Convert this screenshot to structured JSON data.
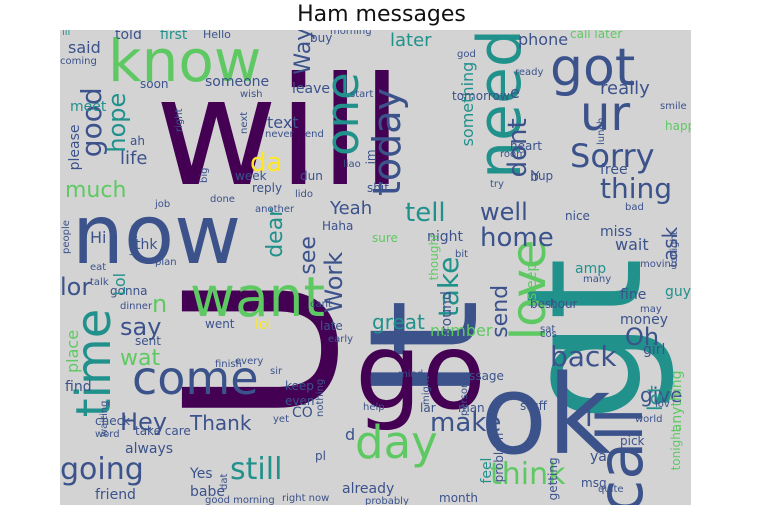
{
  "title": "Ham messages",
  "background_color": "#d3d3d3",
  "palette": [
    "#440154",
    "#3b528b",
    "#21918c",
    "#5ec962",
    "#fde725"
  ],
  "words": [
    {
      "text": "will",
      "color": "#440154"
    },
    {
      "text": "U",
      "color": "#440154"
    },
    {
      "text": "gt",
      "color": "#21918c"
    },
    {
      "text": "lt",
      "color": "#3b528b"
    },
    {
      "text": "ok",
      "color": "#3b528b"
    },
    {
      "text": "go",
      "color": "#440154"
    },
    {
      "text": "now",
      "color": "#3b528b"
    },
    {
      "text": "know",
      "color": "#5ec962"
    },
    {
      "text": "got",
      "color": "#3b528b"
    },
    {
      "text": "want",
      "color": "#5ec962"
    },
    {
      "text": "come",
      "color": "#3b528b"
    },
    {
      "text": "call",
      "color": "#3b528b"
    },
    {
      "text": "need",
      "color": "#21918c"
    },
    {
      "text": "love",
      "color": "#5ec962"
    },
    {
      "text": "time",
      "color": "#21918c"
    },
    {
      "text": "day",
      "color": "#5ec962"
    },
    {
      "text": "one",
      "color": "#21918c"
    },
    {
      "text": "ur",
      "color": "#3b528b"
    },
    {
      "text": "today",
      "color": "#3b528b"
    },
    {
      "text": "Sorry",
      "color": "#3b528b"
    },
    {
      "text": "still",
      "color": "#21918c"
    },
    {
      "text": "think",
      "color": "#5ec962"
    },
    {
      "text": "going",
      "color": "#3b528b"
    },
    {
      "text": "back",
      "color": "#3b528b"
    },
    {
      "text": "take",
      "color": "#21918c"
    },
    {
      "text": "home",
      "color": "#3b528b"
    },
    {
      "text": "tell",
      "color": "#21918c"
    },
    {
      "text": "good",
      "color": "#3b528b"
    },
    {
      "text": "da",
      "color": "#fde725"
    },
    {
      "text": "thing",
      "color": "#3b528b"
    },
    {
      "text": "make",
      "color": "#3b528b"
    },
    {
      "text": "dont",
      "color": "#3b528b"
    },
    {
      "text": "Hey",
      "color": "#3b528b"
    },
    {
      "text": "say",
      "color": "#3b528b"
    },
    {
      "text": "Oh",
      "color": "#3b528b"
    },
    {
      "text": "well",
      "color": "#3b528b"
    },
    {
      "text": "hope",
      "color": "#21918c"
    },
    {
      "text": "much",
      "color": "#5ec962"
    },
    {
      "text": "lor",
      "color": "#3b528b"
    },
    {
      "text": "n",
      "color": "#5ec962"
    },
    {
      "text": "Work",
      "color": "#3b528b"
    },
    {
      "text": "see",
      "color": "#3b528b"
    },
    {
      "text": "send",
      "color": "#3b528b"
    },
    {
      "text": "dear",
      "color": "#21918c"
    },
    {
      "text": "Way",
      "color": "#3b528b"
    },
    {
      "text": "wat",
      "color": "#5ec962"
    },
    {
      "text": "Thank",
      "color": "#3b528b"
    },
    {
      "text": "give",
      "color": "#3b528b"
    },
    {
      "text": "let",
      "color": "#21918c"
    },
    {
      "text": "ask",
      "color": "#3b528b"
    },
    {
      "text": "life",
      "color": "#3b528b"
    },
    {
      "text": "great",
      "color": "#21918c"
    },
    {
      "text": "Yeah",
      "color": "#3b528b"
    },
    {
      "text": "already",
      "color": "#3b528b"
    },
    {
      "text": "friend",
      "color": "#3b528b"
    },
    {
      "text": "always",
      "color": "#3b528b"
    },
    {
      "text": "babe",
      "color": "#3b528b"
    },
    {
      "text": "Yes",
      "color": "#3b528b"
    },
    {
      "text": "later",
      "color": "#21918c"
    },
    {
      "text": "phone",
      "color": "#3b528b"
    },
    {
      "text": "said",
      "color": "#3b528b"
    },
    {
      "text": "told",
      "color": "#3b528b"
    },
    {
      "text": "first",
      "color": "#21918c"
    },
    {
      "text": "Hello",
      "color": "#3b528b"
    },
    {
      "text": "buy",
      "color": "#3b528b"
    },
    {
      "text": "morning",
      "color": "#3b528b"
    },
    {
      "text": "call later",
      "color": "#5ec962"
    },
    {
      "text": "ill",
      "color": "#21918c"
    },
    {
      "text": "coming",
      "color": "#3b528b"
    },
    {
      "text": "meet",
      "color": "#21918c"
    },
    {
      "text": "someone",
      "color": "#3b528b"
    },
    {
      "text": "leave",
      "color": "#3b528b"
    },
    {
      "text": "something",
      "color": "#21918c"
    },
    {
      "text": "tomorrow",
      "color": "#3b528b"
    },
    {
      "text": "really",
      "color": "#3b528b"
    },
    {
      "text": "text",
      "color": "#3b528b"
    },
    {
      "text": "please",
      "color": "#3b528b"
    },
    {
      "text": "night",
      "color": "#3b528b"
    },
    {
      "text": "wait",
      "color": "#3b528b"
    },
    {
      "text": "Hi",
      "color": "#3b528b"
    },
    {
      "text": "thk",
      "color": "#3b528b"
    },
    {
      "text": "gonna",
      "color": "#3b528b"
    },
    {
      "text": "Lol",
      "color": "#21918c"
    },
    {
      "text": "guy",
      "color": "#21918c"
    },
    {
      "text": "fine",
      "color": "#3b528b"
    },
    {
      "text": "money",
      "color": "#3b528b"
    },
    {
      "text": "amp",
      "color": "#21918c"
    },
    {
      "text": "free",
      "color": "#3b528b"
    },
    {
      "text": "miss",
      "color": "#3b528b"
    },
    {
      "text": "nice",
      "color": "#3b528b"
    },
    {
      "text": "sure",
      "color": "#5ec962"
    },
    {
      "text": "number",
      "color": "#5ec962"
    },
    {
      "text": "late",
      "color": "#3b528b"
    },
    {
      "text": "went",
      "color": "#3b528b"
    },
    {
      "text": "lol",
      "color": "#fde725"
    },
    {
      "text": "sent",
      "color": "#3b528b"
    },
    {
      "text": "find",
      "color": "#3b528b"
    },
    {
      "text": "check",
      "color": "#3b528b"
    },
    {
      "text": "keep",
      "color": "#3b528b"
    },
    {
      "text": "even",
      "color": "#3b528b"
    },
    {
      "text": "CO",
      "color": "#3b528b"
    },
    {
      "text": "take care",
      "color": "#3b528b"
    },
    {
      "text": "d",
      "color": "#3b528b"
    },
    {
      "text": "lar",
      "color": "#3b528b"
    },
    {
      "text": "man",
      "color": "#3b528b"
    },
    {
      "text": "stuff",
      "color": "#3b528b"
    },
    {
      "text": "message",
      "color": "#3b528b"
    },
    {
      "text": "feel",
      "color": "#21918c"
    },
    {
      "text": "month",
      "color": "#3b528b"
    },
    {
      "text": "anything",
      "color": "#5ec962"
    },
    {
      "text": "tonight",
      "color": "#5ec962"
    },
    {
      "text": "ya",
      "color": "#3b528b"
    },
    {
      "text": "msg",
      "color": "#3b528b"
    },
    {
      "text": "quite",
      "color": "#3b528b"
    },
    {
      "text": "girl",
      "color": "#3b528b"
    },
    {
      "text": "may",
      "color": "#3b528b"
    },
    {
      "text": "best",
      "color": "#3b528b"
    },
    {
      "text": "hour",
      "color": "#3b528b"
    },
    {
      "text": "sleep",
      "color": "#5ec962"
    },
    {
      "text": "around",
      "color": "#3b528b"
    },
    {
      "text": "thought",
      "color": "#5ec962"
    },
    {
      "text": "week",
      "color": "#3b528b"
    },
    {
      "text": "reply",
      "color": "#3b528b"
    },
    {
      "text": "job",
      "color": "#3b528b"
    },
    {
      "text": "another",
      "color": "#3b528b"
    },
    {
      "text": "done",
      "color": "#3b528b"
    },
    {
      "text": "never",
      "color": "#3b528b"
    },
    {
      "text": "end",
      "color": "#3b528b"
    },
    {
      "text": "Haha",
      "color": "#3b528b"
    },
    {
      "text": "lunch",
      "color": "#3b528b"
    },
    {
      "text": "heart",
      "color": "#3b528b"
    },
    {
      "text": "room",
      "color": "#3b528b"
    },
    {
      "text": "try",
      "color": "#3b528b"
    },
    {
      "text": "Yup",
      "color": "#3b528b"
    },
    {
      "text": "start",
      "color": "#3b528b"
    },
    {
      "text": "ready",
      "color": "#3b528b"
    },
    {
      "text": "smile",
      "color": "#3b528b"
    },
    {
      "text": "happy",
      "color": "#5ec962"
    },
    {
      "text": "ah",
      "color": "#3b528b"
    },
    {
      "text": "right",
      "color": "#3b528b"
    },
    {
      "text": "wish",
      "color": "#3b528b"
    },
    {
      "text": "soon",
      "color": "#3b528b"
    },
    {
      "text": "dun",
      "color": "#3b528b"
    },
    {
      "text": "lido",
      "color": "#3b528b"
    },
    {
      "text": "shit",
      "color": "#3b528b"
    },
    {
      "text": "people",
      "color": "#3b528b"
    },
    {
      "text": "better",
      "color": "#3b528b"
    },
    {
      "text": "eat",
      "color": "#3b528b"
    },
    {
      "text": "talk",
      "color": "#3b528b"
    },
    {
      "text": "plan",
      "color": "#3b528b"
    },
    {
      "text": "dinner",
      "color": "#3b528b"
    },
    {
      "text": "place",
      "color": "#5ec962"
    },
    {
      "text": "finish",
      "color": "#3b528b"
    },
    {
      "text": "every",
      "color": "#3b528b"
    },
    {
      "text": "sir",
      "color": "#3b528b"
    },
    {
      "text": "waiting",
      "color": "#3b528b"
    },
    {
      "text": "word",
      "color": "#3b528b"
    },
    {
      "text": "nothing",
      "color": "#3b528b"
    },
    {
      "text": "help",
      "color": "#3b528b"
    },
    {
      "text": "mind",
      "color": "#3b528b"
    },
    {
      "text": "might",
      "color": "#3b528b"
    },
    {
      "text": "person",
      "color": "#3b528b"
    },
    {
      "text": "problem",
      "color": "#3b528b"
    },
    {
      "text": "getting",
      "color": "#3b528b"
    },
    {
      "text": "world",
      "color": "#3b528b"
    },
    {
      "text": "pick",
      "color": "#3b528b"
    },
    {
      "text": "yet",
      "color": "#3b528b"
    },
    {
      "text": "dat",
      "color": "#3b528b"
    },
    {
      "text": "pl",
      "color": "#3b528b"
    },
    {
      "text": "right now",
      "color": "#3b528b"
    },
    {
      "text": "probably",
      "color": "#3b528b"
    },
    {
      "text": "god",
      "color": "#3b528b"
    },
    {
      "text": "e",
      "color": "#3b528b"
    },
    {
      "text": "b",
      "color": "#3b528b"
    },
    {
      "text": "big",
      "color": "#3b528b"
    },
    {
      "text": "next",
      "color": "#3b528b"
    },
    {
      "text": "good morning",
      "color": "#3b528b"
    },
    {
      "text": "I",
      "color": "#3b528b"
    },
    {
      "text": "many",
      "color": "#3b528b"
    },
    {
      "text": "bit",
      "color": "#3b528b"
    },
    {
      "text": "moving",
      "color": "#3b528b"
    },
    {
      "text": "lov",
      "color": "#3b528b"
    },
    {
      "text": "cos",
      "color": "#3b528b"
    },
    {
      "text": "early",
      "color": "#3b528b"
    },
    {
      "text": "bad",
      "color": "#3b528b"
    },
    {
      "text": "cant",
      "color": "#3b528b"
    },
    {
      "text": "tonight",
      "color": "#3b528b"
    },
    {
      "text": "sat",
      "color": "#3b528b"
    },
    {
      "text": "im",
      "color": "#3b528b"
    },
    {
      "text": "liao",
      "color": "#3b528b"
    }
  ]
}
